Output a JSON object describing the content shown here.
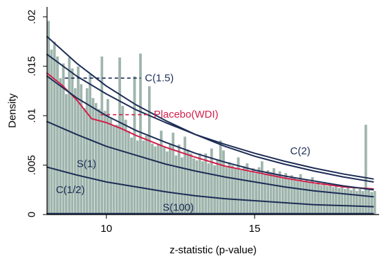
{
  "chart_data": {
    "type": "bar",
    "xlabel": "z-statistic (p-value)",
    "ylabel": "Density",
    "xlim": [
      8,
      19.2
    ],
    "ylim": [
      0,
      0.021
    ],
    "x_ticks": [
      {
        "value": 10,
        "label": "10"
      },
      {
        "value": 15,
        "label": "15"
      }
    ],
    "y_ticks": [
      {
        "value": 0,
        "label": "0"
      },
      {
        "value": 0.005,
        "label": ".005"
      },
      {
        "value": 0.01,
        "label": ".01"
      },
      {
        "value": 0.015,
        "label": ".015"
      },
      {
        "value": 0.02,
        "label": ".02"
      }
    ],
    "grid": false,
    "colors": {
      "bars": "#9fb5ad",
      "bar_edge": "#ffffff",
      "curves": "#1c2c55",
      "placebo": "#d21e4a",
      "axis": "#000000"
    },
    "histogram": {
      "bin_width": 0.1,
      "bins": [
        {
          "x": 8.05,
          "y": 0.0196
        },
        {
          "x": 8.15,
          "y": 0.0167
        },
        {
          "x": 8.25,
          "y": 0.0175
        },
        {
          "x": 8.35,
          "y": 0.016
        },
        {
          "x": 8.45,
          "y": 0.0138
        },
        {
          "x": 8.55,
          "y": 0.0153
        },
        {
          "x": 8.65,
          "y": 0.0122
        },
        {
          "x": 8.75,
          "y": 0.0159
        },
        {
          "x": 8.85,
          "y": 0.0148
        },
        {
          "x": 8.95,
          "y": 0.0128
        },
        {
          "x": 9.05,
          "y": 0.015
        },
        {
          "x": 9.15,
          "y": 0.0132
        },
        {
          "x": 9.25,
          "y": 0.0108
        },
        {
          "x": 9.35,
          "y": 0.0128
        },
        {
          "x": 9.45,
          "y": 0.0142
        },
        {
          "x": 9.55,
          "y": 0.0118
        },
        {
          "x": 9.65,
          "y": 0.0113
        },
        {
          "x": 9.75,
          "y": 0.0107
        },
        {
          "x": 9.85,
          "y": 0.016
        },
        {
          "x": 9.95,
          "y": 0.0105
        },
        {
          "x": 10.05,
          "y": 0.0117
        },
        {
          "x": 10.15,
          "y": 0.0097
        },
        {
          "x": 10.25,
          "y": 0.009
        },
        {
          "x": 10.35,
          "y": 0.0091
        },
        {
          "x": 10.45,
          "y": 0.0159
        },
        {
          "x": 10.55,
          "y": 0.011
        },
        {
          "x": 10.65,
          "y": 0.0096
        },
        {
          "x": 10.75,
          "y": 0.0085
        },
        {
          "x": 10.85,
          "y": 0.0078
        },
        {
          "x": 10.95,
          "y": 0.014
        },
        {
          "x": 11.05,
          "y": 0.0075
        },
        {
          "x": 11.15,
          "y": 0.0163
        },
        {
          "x": 11.25,
          "y": 0.0075
        },
        {
          "x": 11.35,
          "y": 0.008
        },
        {
          "x": 11.45,
          "y": 0.013
        },
        {
          "x": 11.55,
          "y": 0.0072
        },
        {
          "x": 11.65,
          "y": 0.0069
        },
        {
          "x": 11.75,
          "y": 0.0071
        },
        {
          "x": 11.85,
          "y": 0.0085
        },
        {
          "x": 11.95,
          "y": 0.0068
        },
        {
          "x": 12.05,
          "y": 0.0064
        },
        {
          "x": 12.15,
          "y": 0.0071
        },
        {
          "x": 12.25,
          "y": 0.0083
        },
        {
          "x": 12.35,
          "y": 0.006
        },
        {
          "x": 12.45,
          "y": 0.0071
        },
        {
          "x": 12.55,
          "y": 0.0058
        },
        {
          "x": 12.65,
          "y": 0.0079
        },
        {
          "x": 12.75,
          "y": 0.0066
        },
        {
          "x": 12.85,
          "y": 0.0062
        },
        {
          "x": 12.95,
          "y": 0.0057
        },
        {
          "x": 13.05,
          "y": 0.0055
        },
        {
          "x": 13.15,
          "y": 0.0062
        },
        {
          "x": 13.25,
          "y": 0.0054
        },
        {
          "x": 13.35,
          "y": 0.0062
        },
        {
          "x": 13.45,
          "y": 0.0052
        },
        {
          "x": 13.55,
          "y": 0.0067
        },
        {
          "x": 13.65,
          "y": 0.005
        },
        {
          "x": 13.75,
          "y": 0.0056
        },
        {
          "x": 13.85,
          "y": 0.0075
        },
        {
          "x": 13.95,
          "y": 0.0065
        },
        {
          "x": 14.05,
          "y": 0.0048
        },
        {
          "x": 14.15,
          "y": 0.0053
        },
        {
          "x": 14.25,
          "y": 0.005
        },
        {
          "x": 14.35,
          "y": 0.0047
        },
        {
          "x": 14.45,
          "y": 0.0058
        },
        {
          "x": 14.55,
          "y": 0.0045
        },
        {
          "x": 14.65,
          "y": 0.0049
        },
        {
          "x": 14.75,
          "y": 0.0052
        },
        {
          "x": 14.85,
          "y": 0.0044
        },
        {
          "x": 14.95,
          "y": 0.0047
        },
        {
          "x": 15.05,
          "y": 0.0042
        },
        {
          "x": 15.15,
          "y": 0.0048
        },
        {
          "x": 15.25,
          "y": 0.0054
        },
        {
          "x": 15.35,
          "y": 0.0041
        },
        {
          "x": 15.45,
          "y": 0.0045
        },
        {
          "x": 15.55,
          "y": 0.0043
        },
        {
          "x": 15.65,
          "y": 0.0047
        },
        {
          "x": 15.75,
          "y": 0.004
        },
        {
          "x": 15.85,
          "y": 0.0044
        },
        {
          "x": 15.95,
          "y": 0.0038
        },
        {
          "x": 16.05,
          "y": 0.0042
        },
        {
          "x": 16.15,
          "y": 0.0036
        },
        {
          "x": 16.25,
          "y": 0.004
        },
        {
          "x": 16.35,
          "y": 0.0037
        },
        {
          "x": 16.45,
          "y": 0.0035
        },
        {
          "x": 16.55,
          "y": 0.0041
        },
        {
          "x": 16.65,
          "y": 0.0034
        },
        {
          "x": 16.75,
          "y": 0.0036
        },
        {
          "x": 16.85,
          "y": 0.0033
        },
        {
          "x": 16.95,
          "y": 0.0038
        },
        {
          "x": 17.05,
          "y": 0.0031
        },
        {
          "x": 17.15,
          "y": 0.0034
        },
        {
          "x": 17.25,
          "y": 0.003
        },
        {
          "x": 17.35,
          "y": 0.0033
        },
        {
          "x": 17.45,
          "y": 0.0029
        },
        {
          "x": 17.55,
          "y": 0.0031
        },
        {
          "x": 17.65,
          "y": 0.0028
        },
        {
          "x": 17.75,
          "y": 0.003
        },
        {
          "x": 17.85,
          "y": 0.0027
        },
        {
          "x": 17.95,
          "y": 0.0029
        },
        {
          "x": 18.05,
          "y": 0.0026
        },
        {
          "x": 18.15,
          "y": 0.0028
        },
        {
          "x": 18.25,
          "y": 0.0025
        },
        {
          "x": 18.35,
          "y": 0.0027
        },
        {
          "x": 18.45,
          "y": 0.0024
        },
        {
          "x": 18.55,
          "y": 0.0026
        },
        {
          "x": 18.65,
          "y": 0.0024
        },
        {
          "x": 18.75,
          "y": 0.0091
        },
        {
          "x": 18.85,
          "y": 0.0025
        },
        {
          "x": 18.95,
          "y": 0.0023
        },
        {
          "x": 19.05,
          "y": 0.0024
        }
      ]
    },
    "series": [
      {
        "name": "C(1.5)",
        "x": [
          8,
          9,
          10,
          11,
          12,
          13,
          14,
          15,
          16,
          17,
          18,
          19
        ],
        "y": [
          0.018,
          0.0153,
          0.013,
          0.0111,
          0.0095,
          0.0081,
          0.0069,
          0.0059,
          0.0051,
          0.0044,
          0.0038,
          0.0033
        ]
      },
      {
        "name": "C(2)",
        "x": [
          8,
          9,
          10,
          11,
          12,
          13,
          14,
          15,
          16,
          17,
          18,
          19
        ],
        "y": [
          0.0162,
          0.014,
          0.0122,
          0.0106,
          0.0093,
          0.0081,
          0.0071,
          0.0062,
          0.0054,
          0.0047,
          0.0041,
          0.0036
        ]
      },
      {
        "name": "Placebo(WDI)",
        "x": [
          8,
          8.5,
          9,
          9.5,
          10,
          10.5,
          11,
          12,
          13,
          14,
          15,
          16,
          17,
          18,
          19
        ],
        "y": [
          0.0143,
          0.0131,
          0.0116,
          0.0097,
          0.0093,
          0.0087,
          0.008,
          0.0068,
          0.0058,
          0.0049,
          0.0043,
          0.0037,
          0.0032,
          0.0028,
          0.0026
        ]
      },
      {
        "name": "",
        "x": [
          8,
          9,
          10,
          11,
          12,
          13,
          14,
          15,
          16,
          17,
          18,
          19
        ],
        "y": [
          0.014,
          0.0118,
          0.01,
          0.0085,
          0.0073,
          0.0062,
          0.0053,
          0.0045,
          0.0039,
          0.0034,
          0.0029,
          0.0025
        ]
      },
      {
        "name": "S(1)",
        "x": [
          8,
          9,
          10,
          11,
          12,
          13,
          14,
          15,
          16,
          17,
          18,
          19
        ],
        "y": [
          0.0094,
          0.0081,
          0.0069,
          0.006,
          0.0051,
          0.0044,
          0.0038,
          0.0033,
          0.0028,
          0.0024,
          0.0021,
          0.0018
        ]
      },
      {
        "name": "C(1/2)",
        "x": [
          8,
          9,
          10,
          11,
          12,
          13,
          14,
          15,
          16,
          17,
          18,
          19
        ],
        "y": [
          0.0048,
          0.004,
          0.0033,
          0.0028,
          0.0023,
          0.0019,
          0.0016,
          0.0014,
          0.0012,
          0.001,
          0.0009,
          0.0008
        ]
      },
      {
        "name": "S(100)",
        "x": [
          8,
          19
        ],
        "y": [
          0.0001,
          0.0001
        ]
      }
    ],
    "annotations": [
      {
        "text": "C(1.5)",
        "series": "C(1.5)",
        "x": 11.3,
        "y": 0.0138,
        "leader_from_x": 8.6,
        "color_key": "curves"
      },
      {
        "text": "Placebo(WDI)",
        "series": "Placebo(WDI)",
        "x": 11.6,
        "y": 0.0101,
        "leader_from_x": 9.8,
        "color_key": "placebo"
      },
      {
        "text": "C(2)",
        "series": "C(2)",
        "x": 16.2,
        "y": 0.0064,
        "leader_from_x": null,
        "color_key": "curves"
      },
      {
        "text": "S(1)",
        "series": "S(1)",
        "x": 9.0,
        "y": 0.0051,
        "leader_from_x": null,
        "color_key": "curves"
      },
      {
        "text": "C(1/2)",
        "series": "C(1/2)",
        "x": 8.3,
        "y": 0.0025,
        "leader_from_x": null,
        "color_key": "curves"
      },
      {
        "text": "S(100)",
        "series": "S(100)",
        "x": 11.9,
        "y": 0.0007,
        "leader_from_x": null,
        "color_key": "curves"
      }
    ]
  }
}
